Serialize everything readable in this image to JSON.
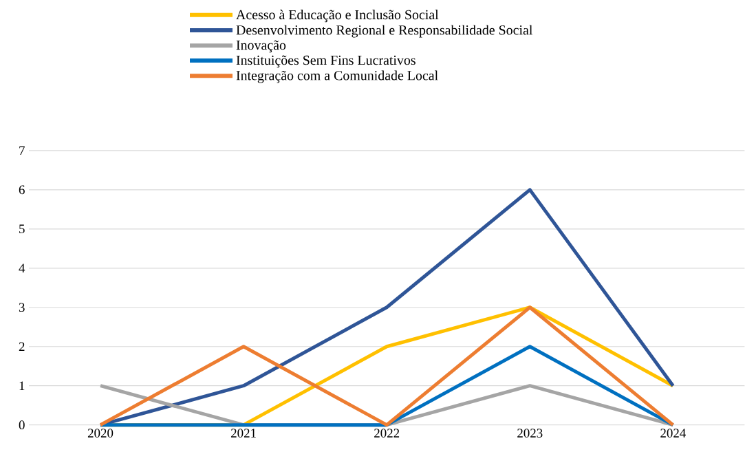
{
  "chart_data": {
    "type": "line",
    "categories": [
      "2020",
      "2021",
      "2022",
      "2023",
      "2024"
    ],
    "series": [
      {
        "name": "Acesso à Educação e Inclusão Social",
        "color": "#ffc000",
        "values": [
          0,
          0,
          2,
          3,
          1
        ]
      },
      {
        "name": "Desenvolvimento Regional e Responsabilidade Social",
        "color": "#2f5597",
        "values": [
          0,
          1,
          3,
          6,
          1
        ]
      },
      {
        "name": "Inovação",
        "color": "#a5a5a5",
        "values": [
          1,
          0,
          0,
          1,
          0
        ]
      },
      {
        "name": "Instituições Sem Fins Lucrativos",
        "color": "#0070c0",
        "values": [
          0,
          0,
          0,
          2,
          0
        ]
      },
      {
        "name": "Integração com a Comunidade Local",
        "color": "#ed7d31",
        "values": [
          0,
          2,
          0,
          3,
          0
        ]
      }
    ],
    "ylim": [
      0,
      7
    ],
    "yticks": [
      0,
      1,
      2,
      3,
      4,
      5,
      6,
      7
    ],
    "grid": "y",
    "legend": "top",
    "marker": "none",
    "line_style": "solid"
  }
}
